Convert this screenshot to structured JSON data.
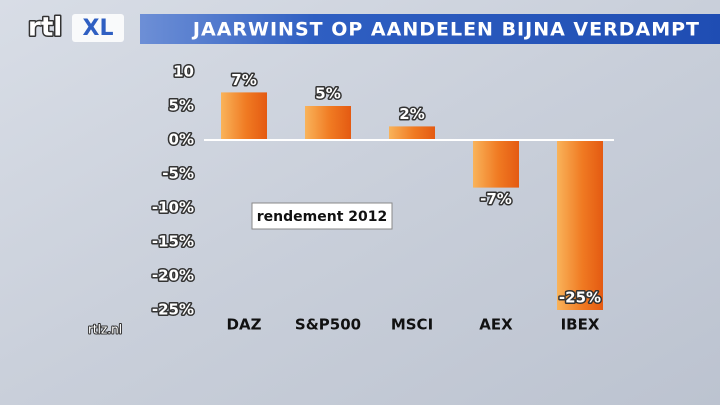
{
  "chart_data": {
    "type": "bar",
    "title": "JAARWINST OP AANDELEN BIJNA VERDAMPT",
    "logo": "rtl",
    "logo_suffix": "XL",
    "source": "rtlz.nl",
    "annotation": "rendement 2012",
    "categories": [
      "DAZ",
      "S&P500",
      "MSCI",
      "AEX",
      "IBEX"
    ],
    "values": [
      7,
      5,
      2,
      -7,
      -25
    ],
    "value_labels": [
      "7%",
      "5%",
      "2%",
      "-7%",
      "-25%"
    ],
    "color": "#f07a22",
    "ylim": [
      -25,
      10
    ],
    "yticks": [
      10,
      {
        "value": 5,
        "label": "5%"
      },
      {
        "value": 0,
        "label": "0%"
      },
      {
        "value": -5,
        "label": "-5%"
      },
      {
        "value": -10,
        "label": "-10%"
      },
      {
        "value": -15,
        "label": "-15%"
      },
      {
        "value": -20,
        "label": "-20%"
      },
      {
        "value": -25,
        "label": "-25%"
      }
    ],
    "zero_line": true
  }
}
